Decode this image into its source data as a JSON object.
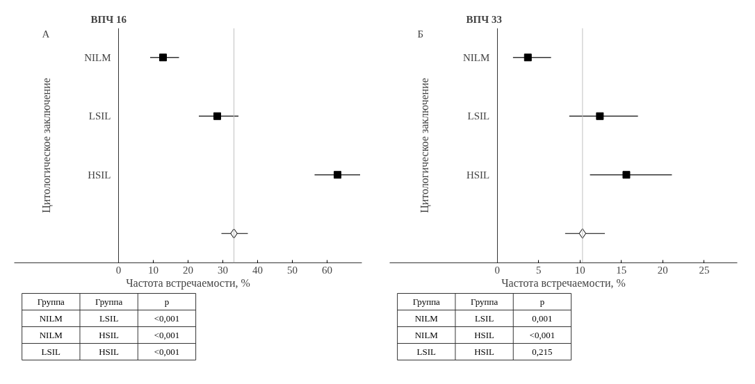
{
  "chart_data": [
    {
      "type": "scatter",
      "orientation": "horizontal",
      "title": "ВПЧ 16",
      "xlabel": "Частота встречаемости, %",
      "ylabel": "Цитологическое заключение",
      "categories": [
        "NILM",
        "LSIL",
        "HSIL",
        null
      ],
      "series": [
        {
          "color": "#000000",
          "marker": "square",
          "values": [
            12.8,
            28.4,
            63.0,
            null
          ],
          "errors": [
            [
              9.1,
              17.4
            ],
            [
              23.1,
              34.5
            ],
            [
              56.4,
              69.5
            ],
            null
          ]
        },
        {
          "color": "#000000",
          "marker": "diamond",
          "values": [
            null,
            null,
            null,
            33.2
          ],
          "errors": [
            null,
            null,
            null,
            [
              29.6,
              37.2
            ]
          ]
        }
      ],
      "xlim": [
        -30,
        70
      ],
      "xticks": [
        0,
        10,
        20,
        30,
        40,
        50,
        60
      ],
      "ref_lines": [
        {
          "axis": "x",
          "value": 33.2,
          "color": "#c0c0c0"
        }
      ],
      "annotations": [
        "А",
        "Группа",
        "Группа",
        "p",
        "NILM",
        "LSIL",
        "<0,001",
        "NILM",
        "HSIL",
        "<0,001",
        "LSIL",
        "HSIL",
        "<0,001"
      ]
    },
    {
      "type": "scatter",
      "orientation": "horizontal",
      "title": "ВПЧ 33",
      "xlabel": "Частота встречаемости, %",
      "ylabel": "Цитологическое заключение",
      "categories": [
        "NILM",
        "LSIL",
        "HSIL",
        null
      ],
      "series": [
        {
          "color": "#000000",
          "marker": "square",
          "values": [
            3.7,
            12.4,
            15.6,
            null
          ],
          "errors": [
            [
              1.9,
              6.5
            ],
            [
              8.7,
              17.0
            ],
            [
              11.2,
              21.1
            ],
            null
          ]
        },
        {
          "color": "#000000",
          "marker": "diamond",
          "values": [
            null,
            null,
            null,
            10.3
          ],
          "errors": [
            null,
            null,
            null,
            [
              8.2,
              13.0
            ]
          ]
        }
      ],
      "xlim": [
        -13,
        29
      ],
      "xticks": [
        0,
        5,
        10,
        15,
        20,
        25
      ],
      "ref_lines": [
        {
          "axis": "x",
          "value": 10.3,
          "color": "#c0c0c0"
        }
      ],
      "annotations": [
        "Б",
        "Группа",
        "Группа",
        "p",
        "NILM",
        "LSIL",
        "0,001",
        "NILM",
        "HSIL",
        "<0,001",
        "LSIL",
        "HSIL",
        "0,215"
      ]
    }
  ]
}
